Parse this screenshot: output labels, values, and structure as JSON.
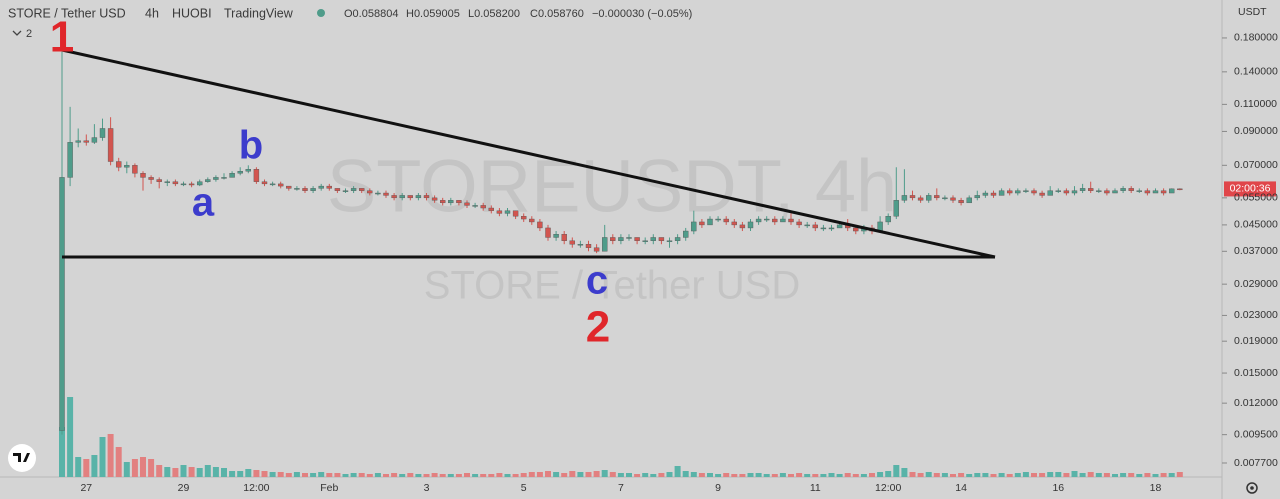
{
  "header": {
    "symbol": "STORE / Tether USD",
    "interval": "4h",
    "exchange": "HUOBI",
    "source": "TradingView",
    "ohlc": [
      "O0.058804",
      "H0.059005",
      "L0.058200",
      "C0.058760",
      "−0.000030 (−0.05%)"
    ],
    "indicators": 2
  },
  "watermark": [
    "STOREUSDT, 4h",
    "STORE / Tether USD"
  ],
  "annotations": [
    "1",
    "a",
    "b",
    "c",
    "2"
  ],
  "price_axis": {
    "currency": "USDT",
    "countdown": "02:00:36"
  },
  "chart_data": {
    "type": "candlestick",
    "log_scale": true,
    "up_color": "#4f9c8a",
    "down_color": "#d2554f",
    "volume_up_color": "#59b3a8",
    "volume_down_color": "#e28080",
    "ylim": [
      0.00694,
      0.2385
    ],
    "yticks": [
      {
        "value": 0.18,
        "label": "0.180000"
      },
      {
        "value": 0.14,
        "label": "0.140000"
      },
      {
        "value": 0.11,
        "label": "0.110000"
      },
      {
        "value": 0.09,
        "label": "0.090000"
      },
      {
        "value": 0.07,
        "label": "0.070000"
      },
      {
        "value": 0.055,
        "label": "0.055000"
      },
      {
        "value": 0.045,
        "label": "0.045000"
      },
      {
        "value": 0.037,
        "label": "0.037000"
      },
      {
        "value": 0.029,
        "label": "0.029000"
      },
      {
        "value": 0.023,
        "label": "0.023000"
      },
      {
        "value": 0.019,
        "label": "0.019000"
      },
      {
        "value": 0.015,
        "label": "0.015000"
      },
      {
        "value": 0.012,
        "label": "0.012000"
      },
      {
        "value": 0.0095,
        "label": "0.009500"
      },
      {
        "value": 0.0077,
        "label": "0.007700"
      }
    ],
    "categories": [
      null,
      null,
      null,
      "27",
      null,
      null,
      null,
      null,
      null,
      null,
      null,
      null,
      null,
      null,
      null,
      "29",
      null,
      null,
      null,
      null,
      null,
      null,
      null,
      null,
      "12:00",
      null,
      null,
      null,
      null,
      null,
      null,
      null,
      null,
      "Feb",
      null,
      null,
      null,
      null,
      null,
      null,
      null,
      null,
      null,
      null,
      null,
      "3",
      null,
      null,
      null,
      null,
      null,
      null,
      null,
      null,
      null,
      null,
      null,
      "5",
      null,
      null,
      null,
      null,
      null,
      null,
      null,
      null,
      null,
      null,
      null,
      "7",
      null,
      null,
      null,
      null,
      null,
      null,
      null,
      null,
      null,
      null,
      null,
      "9",
      null,
      null,
      null,
      null,
      null,
      null,
      null,
      null,
      null,
      null,
      null,
      "11",
      null,
      null,
      null,
      null,
      null,
      null,
      null,
      null,
      "12:00",
      null,
      null,
      null,
      null,
      null,
      null,
      null,
      null,
      "14",
      null,
      null,
      null,
      null,
      null,
      null,
      null,
      null,
      null,
      null,
      null,
      "16",
      null,
      null,
      null,
      null,
      null,
      null,
      null,
      null,
      null,
      null,
      null,
      "18",
      null,
      null,
      null
    ],
    "open": [
      0.0098,
      0.064,
      0.083,
      0.084,
      0.083,
      0.086,
      0.092,
      0.072,
      0.069,
      0.07,
      0.066,
      0.064,
      0.063,
      0.062,
      0.062,
      0.061,
      0.061,
      0.0605,
      0.062,
      0.063,
      0.064,
      0.064,
      0.066,
      0.067,
      0.068,
      0.062,
      0.061,
      0.061,
      0.06,
      0.059,
      0.059,
      0.058,
      0.059,
      0.06,
      0.059,
      0.058,
      0.058,
      0.059,
      0.058,
      0.057,
      0.057,
      0.056,
      0.055,
      0.056,
      0.055,
      0.056,
      0.055,
      0.054,
      0.053,
      0.054,
      0.053,
      0.052,
      0.052,
      0.051,
      0.05,
      0.049,
      0.05,
      0.048,
      0.047,
      0.046,
      0.044,
      0.041,
      0.042,
      0.04,
      0.039,
      0.039,
      0.038,
      0.037,
      0.041,
      0.04,
      0.041,
      0.041,
      0.04,
      0.04,
      0.041,
      0.04,
      0.04,
      0.041,
      0.043,
      0.046,
      0.045,
      0.047,
      0.047,
      0.046,
      0.045,
      0.044,
      0.046,
      0.047,
      0.047,
      0.046,
      0.047,
      0.046,
      0.045,
      0.045,
      0.044,
      0.044,
      0.044,
      0.045,
      0.044,
      0.043,
      0.044,
      0.043,
      0.046,
      0.048,
      0.054,
      0.056,
      0.055,
      0.054,
      0.056,
      0.055,
      0.055,
      0.054,
      0.053,
      0.055,
      0.056,
      0.057,
      0.056,
      0.058,
      0.057,
      0.058,
      0.058,
      0.057,
      0.056,
      0.058,
      0.058,
      0.057,
      0.058,
      0.059,
      0.058,
      0.058,
      0.057,
      0.058,
      0.059,
      0.058,
      0.058,
      0.057,
      0.058,
      0.057,
      0.058804
    ],
    "high": [
      0.172,
      0.108,
      0.092,
      0.088,
      0.095,
      0.099,
      0.1,
      0.074,
      0.072,
      0.071,
      0.067,
      0.065,
      0.064,
      0.063,
      0.063,
      0.062,
      0.062,
      0.063,
      0.064,
      0.065,
      0.066,
      0.067,
      0.069,
      0.07,
      0.069,
      0.063,
      0.062,
      0.062,
      0.06,
      0.06,
      0.06,
      0.06,
      0.061,
      0.061,
      0.059,
      0.059,
      0.06,
      0.059,
      0.059,
      0.058,
      0.058,
      0.057,
      0.057,
      0.056,
      0.057,
      0.057,
      0.056,
      0.055,
      0.055,
      0.054,
      0.054,
      0.053,
      0.053,
      0.052,
      0.051,
      0.051,
      0.05,
      0.049,
      0.048,
      0.047,
      0.045,
      0.043,
      0.043,
      0.041,
      0.04,
      0.04,
      0.039,
      0.045,
      0.042,
      0.042,
      0.042,
      0.041,
      0.041,
      0.042,
      0.041,
      0.041,
      0.042,
      0.044,
      0.05,
      0.047,
      0.048,
      0.048,
      0.048,
      0.047,
      0.046,
      0.047,
      0.048,
      0.048,
      0.048,
      0.048,
      0.049,
      0.047,
      0.046,
      0.046,
      0.045,
      0.045,
      0.046,
      0.047,
      0.045,
      0.045,
      0.045,
      0.048,
      0.049,
      0.069,
      0.068,
      0.058,
      0.056,
      0.057,
      0.059,
      0.056,
      0.056,
      0.055,
      0.056,
      0.058,
      0.058,
      0.058,
      0.059,
      0.059,
      0.059,
      0.059,
      0.059,
      0.058,
      0.06,
      0.059,
      0.059,
      0.06,
      0.061,
      0.062,
      0.059,
      0.059,
      0.059,
      0.06,
      0.06,
      0.059,
      0.059,
      0.059,
      0.059,
      0.059,
      0.059005
    ],
    "low": [
      0.0095,
      0.06,
      0.08,
      0.081,
      0.082,
      0.084,
      0.07,
      0.067,
      0.066,
      0.064,
      0.058,
      0.061,
      0.059,
      0.06,
      0.06,
      0.06,
      0.0595,
      0.06,
      0.0615,
      0.062,
      0.063,
      0.064,
      0.065,
      0.066,
      0.061,
      0.06,
      0.06,
      0.059,
      0.058,
      0.058,
      0.057,
      0.057,
      0.058,
      0.058,
      0.057,
      0.057,
      0.057,
      0.057,
      0.056,
      0.056,
      0.055,
      0.054,
      0.054,
      0.054,
      0.054,
      0.054,
      0.053,
      0.052,
      0.052,
      0.052,
      0.051,
      0.051,
      0.05,
      0.049,
      0.048,
      0.048,
      0.047,
      0.046,
      0.045,
      0.043,
      0.04,
      0.04,
      0.039,
      0.038,
      0.038,
      0.037,
      0.0365,
      0.037,
      0.039,
      0.039,
      0.04,
      0.039,
      0.039,
      0.039,
      0.039,
      0.038,
      0.039,
      0.04,
      0.042,
      0.044,
      0.045,
      0.046,
      0.045,
      0.044,
      0.043,
      0.043,
      0.045,
      0.046,
      0.045,
      0.046,
      0.045,
      0.044,
      0.044,
      0.043,
      0.043,
      0.043,
      0.044,
      0.043,
      0.042,
      0.042,
      0.042,
      0.043,
      0.045,
      0.047,
      0.053,
      0.054,
      0.053,
      0.053,
      0.054,
      0.054,
      0.053,
      0.052,
      0.053,
      0.054,
      0.055,
      0.055,
      0.056,
      0.056,
      0.056,
      0.057,
      0.056,
      0.055,
      0.056,
      0.057,
      0.056,
      0.056,
      0.057,
      0.057,
      0.057,
      0.056,
      0.057,
      0.057,
      0.057,
      0.057,
      0.056,
      0.057,
      0.056,
      0.057,
      0.0582
    ],
    "close": [
      0.064,
      0.083,
      0.084,
      0.083,
      0.086,
      0.092,
      0.072,
      0.069,
      0.07,
      0.066,
      0.064,
      0.063,
      0.062,
      0.062,
      0.061,
      0.061,
      0.0605,
      0.062,
      0.063,
      0.064,
      0.064,
      0.066,
      0.067,
      0.068,
      0.062,
      0.061,
      0.061,
      0.06,
      0.059,
      0.059,
      0.058,
      0.059,
      0.06,
      0.059,
      0.058,
      0.058,
      0.059,
      0.058,
      0.057,
      0.057,
      0.056,
      0.055,
      0.056,
      0.055,
      0.056,
      0.055,
      0.054,
      0.053,
      0.054,
      0.053,
      0.052,
      0.052,
      0.051,
      0.05,
      0.049,
      0.05,
      0.048,
      0.047,
      0.046,
      0.044,
      0.041,
      0.042,
      0.04,
      0.039,
      0.039,
      0.038,
      0.037,
      0.041,
      0.04,
      0.041,
      0.041,
      0.04,
      0.04,
      0.041,
      0.04,
      0.04,
      0.041,
      0.043,
      0.046,
      0.045,
      0.047,
      0.047,
      0.046,
      0.045,
      0.044,
      0.046,
      0.047,
      0.047,
      0.046,
      0.047,
      0.046,
      0.045,
      0.045,
      0.044,
      0.044,
      0.044,
      0.045,
      0.044,
      0.043,
      0.044,
      0.043,
      0.046,
      0.048,
      0.054,
      0.056,
      0.055,
      0.054,
      0.056,
      0.055,
      0.055,
      0.054,
      0.053,
      0.055,
      0.056,
      0.057,
      0.056,
      0.058,
      0.057,
      0.058,
      0.058,
      0.057,
      0.056,
      0.058,
      0.058,
      0.057,
      0.058,
      0.059,
      0.058,
      0.058,
      0.057,
      0.058,
      0.059,
      0.058,
      0.058,
      0.057,
      0.058,
      0.057,
      0.0588,
      0.05876
    ],
    "volume": [
      50,
      80,
      20,
      18,
      22,
      40,
      43,
      30,
      15,
      18,
      20,
      18,
      12,
      10,
      9,
      12,
      10,
      9,
      12,
      10,
      9,
      6,
      6,
      8,
      7,
      6,
      5,
      5,
      4,
      5,
      4,
      4,
      5,
      4,
      4,
      3,
      4,
      4,
      3,
      4,
      3,
      4,
      3,
      4,
      3,
      3,
      4,
      3,
      3,
      3,
      4,
      3,
      3,
      3,
      4,
      3,
      3,
      4,
      5,
      5,
      6,
      5,
      4,
      6,
      5,
      5,
      6,
      7,
      5,
      4,
      4,
      3,
      4,
      3,
      4,
      5,
      11,
      6,
      5,
      4,
      4,
      3,
      4,
      3,
      3,
      4,
      4,
      3,
      3,
      4,
      3,
      4,
      3,
      3,
      3,
      4,
      3,
      4,
      3,
      3,
      4,
      5,
      6,
      12,
      9,
      5,
      4,
      5,
      4,
      4,
      3,
      4,
      3,
      4,
      4,
      3,
      4,
      3,
      4,
      5,
      4,
      4,
      5,
      5,
      4,
      6,
      4,
      5,
      4,
      4,
      3,
      4,
      4,
      3,
      4,
      3,
      4,
      4,
      5
    ]
  }
}
